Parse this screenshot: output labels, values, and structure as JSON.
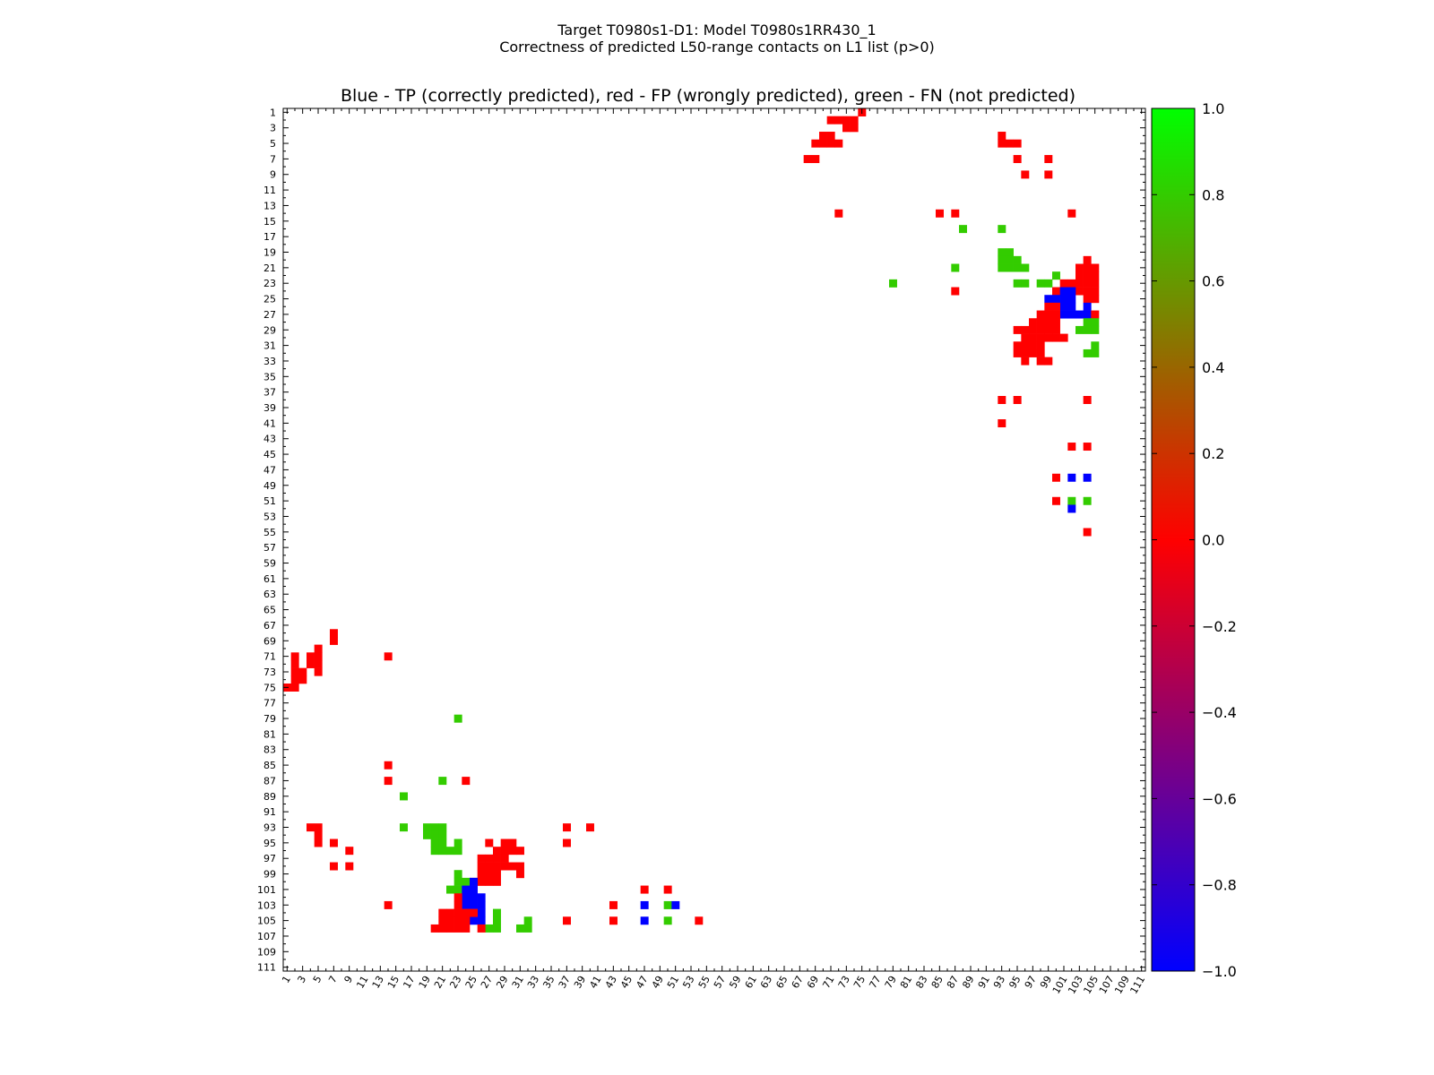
{
  "figure": {
    "title_line1": "Target T0980s1-D1: Model T0980s1RR430_1",
    "title_line2": "Correctness of predicted L50-range contacts on L1 list (p>0)"
  },
  "chart_data": {
    "type": "heatmap",
    "title": "Blue - TP (correctly predicted), red - FP (wrongly predicted), green - FN (not predicted)",
    "x_range": [
      1,
      111
    ],
    "y_range": [
      1,
      111
    ],
    "x_ticks": [
      1,
      3,
      5,
      7,
      9,
      11,
      13,
      15,
      17,
      19,
      21,
      23,
      25,
      27,
      29,
      31,
      33,
      35,
      37,
      39,
      41,
      43,
      45,
      47,
      49,
      51,
      53,
      55,
      57,
      59,
      61,
      63,
      65,
      67,
      69,
      71,
      73,
      75,
      77,
      79,
      81,
      83,
      85,
      87,
      89,
      91,
      93,
      95,
      97,
      99,
      101,
      103,
      105,
      107,
      109,
      111
    ],
    "y_ticks": [
      1,
      3,
      5,
      7,
      9,
      11,
      13,
      15,
      17,
      19,
      21,
      23,
      25,
      27,
      29,
      31,
      33,
      35,
      37,
      39,
      41,
      43,
      45,
      47,
      49,
      51,
      53,
      55,
      57,
      59,
      61,
      63,
      65,
      67,
      69,
      71,
      73,
      75,
      77,
      79,
      81,
      83,
      85,
      87,
      89,
      91,
      93,
      95,
      97,
      99,
      101,
      103,
      105,
      107,
      109,
      111
    ],
    "colorbar": {
      "min": -1.0,
      "max": 1.0,
      "ticks": [
        1.0,
        0.8,
        0.6,
        0.4,
        0.2,
        0.0,
        -0.2,
        -0.4,
        -0.6,
        -0.8,
        -1.0
      ],
      "tick_labels": [
        "1.0",
        "0.8",
        "0.6",
        "0.4",
        "0.2",
        "0.0",
        "−0.2",
        "−0.4",
        "−0.6",
        "−0.8",
        "−1.0"
      ],
      "colors": [
        "#0000ff",
        "#ff0000",
        "#00ff00"
      ]
    },
    "categories": [
      {
        "name": "TP",
        "value": -1,
        "color": "#0000ff"
      },
      {
        "name": "FP",
        "value": 0,
        "color": "#ff0000"
      },
      {
        "name": "FN",
        "value": 0.8,
        "color": "#33cc00"
      }
    ],
    "cells": [
      [
        71,
        2,
        0
      ],
      [
        72,
        2,
        0
      ],
      [
        73,
        2,
        0
      ],
      [
        74,
        2,
        0
      ],
      [
        75,
        1,
        0
      ],
      [
        74,
        3,
        0
      ],
      [
        73,
        3,
        0
      ],
      [
        70,
        4,
        0
      ],
      [
        71,
        4,
        0
      ],
      [
        70,
        5,
        0
      ],
      [
        71,
        5,
        0
      ],
      [
        72,
        5,
        0
      ],
      [
        69,
        5,
        0
      ],
      [
        68,
        7,
        0
      ],
      [
        69,
        7,
        0
      ],
      [
        93,
        4,
        0
      ],
      [
        93,
        5,
        0
      ],
      [
        94,
        5,
        0
      ],
      [
        95,
        5,
        0
      ],
      [
        95,
        7,
        0
      ],
      [
        99,
        7,
        0
      ],
      [
        96,
        9,
        0
      ],
      [
        99,
        9,
        0
      ],
      [
        72,
        14,
        0
      ],
      [
        85,
        14,
        0
      ],
      [
        87,
        14,
        0
      ],
      [
        102,
        14,
        0
      ],
      [
        88,
        16,
        0.8
      ],
      [
        93,
        16,
        0.8
      ],
      [
        93,
        19,
        0.8
      ],
      [
        94,
        19,
        0.8
      ],
      [
        93,
        20,
        0.8
      ],
      [
        94,
        20,
        0.8
      ],
      [
        95,
        20,
        0.8
      ],
      [
        93,
        21,
        0.8
      ],
      [
        94,
        21,
        0.8
      ],
      [
        95,
        21,
        0.8
      ],
      [
        96,
        21,
        0.8
      ],
      [
        87,
        21,
        0.8
      ],
      [
        79,
        23,
        0.8
      ],
      [
        95,
        23,
        0.8
      ],
      [
        96,
        23,
        0.8
      ],
      [
        98,
        23,
        0.8
      ],
      [
        99,
        23,
        0.8
      ],
      [
        100,
        22,
        0.8
      ],
      [
        104,
        20,
        0
      ],
      [
        103,
        21,
        0
      ],
      [
        104,
        21,
        0
      ],
      [
        105,
        21,
        0
      ],
      [
        103,
        22,
        0
      ],
      [
        104,
        22,
        0
      ],
      [
        105,
        22,
        0
      ],
      [
        101,
        23,
        0
      ],
      [
        102,
        23,
        0
      ],
      [
        103,
        23,
        0
      ],
      [
        104,
        23,
        0
      ],
      [
        105,
        23,
        0
      ],
      [
        100,
        24,
        0
      ],
      [
        103,
        24,
        0
      ],
      [
        104,
        24,
        0
      ],
      [
        105,
        24,
        0
      ],
      [
        104,
        25,
        0
      ],
      [
        105,
        25,
        0
      ],
      [
        87,
        24,
        0
      ],
      [
        101,
        24,
        -1
      ],
      [
        102,
        24,
        -1
      ],
      [
        99,
        25,
        -1
      ],
      [
        100,
        25,
        -1
      ],
      [
        101,
        25,
        -1
      ],
      [
        102,
        25,
        -1
      ],
      [
        101,
        26,
        -1
      ],
      [
        102,
        26,
        -1
      ],
      [
        104,
        26,
        -1
      ],
      [
        101,
        27,
        -1
      ],
      [
        102,
        27,
        -1
      ],
      [
        103,
        27,
        -1
      ],
      [
        104,
        27,
        -1
      ],
      [
        99,
        26,
        0
      ],
      [
        100,
        26,
        0
      ],
      [
        98,
        27,
        0
      ],
      [
        99,
        27,
        0
      ],
      [
        100,
        27,
        0
      ],
      [
        105,
        27,
        0
      ],
      [
        97,
        28,
        0
      ],
      [
        98,
        28,
        0
      ],
      [
        99,
        28,
        0
      ],
      [
        100,
        28,
        0
      ],
      [
        95,
        29,
        0
      ],
      [
        96,
        29,
        0
      ],
      [
        97,
        29,
        0
      ],
      [
        98,
        29,
        0
      ],
      [
        99,
        29,
        0
      ],
      [
        100,
        29,
        0
      ],
      [
        104,
        28,
        0.8
      ],
      [
        105,
        28,
        0.8
      ],
      [
        103,
        29,
        0.8
      ],
      [
        104,
        29,
        0.8
      ],
      [
        105,
        29,
        0.8
      ],
      [
        105,
        31,
        0.8
      ],
      [
        104,
        32,
        0.8
      ],
      [
        105,
        32,
        0.8
      ],
      [
        96,
        30,
        0
      ],
      [
        97,
        30,
        0
      ],
      [
        98,
        30,
        0
      ],
      [
        99,
        30,
        0
      ],
      [
        100,
        30,
        0
      ],
      [
        101,
        30,
        0
      ],
      [
        95,
        31,
        0
      ],
      [
        96,
        31,
        0
      ],
      [
        97,
        31,
        0
      ],
      [
        98,
        31,
        0
      ],
      [
        95,
        32,
        0
      ],
      [
        96,
        32,
        0
      ],
      [
        97,
        32,
        0
      ],
      [
        98,
        32,
        0
      ],
      [
        96,
        33,
        0
      ],
      [
        98,
        33,
        0
      ],
      [
        99,
        33,
        0
      ],
      [
        93,
        38,
        0
      ],
      [
        95,
        38,
        0
      ],
      [
        104,
        38,
        0
      ],
      [
        93,
        41,
        0
      ],
      [
        102,
        44,
        0
      ],
      [
        104,
        44,
        0
      ],
      [
        100,
        48,
        0
      ],
      [
        102,
        48,
        -1
      ],
      [
        104,
        48,
        -1
      ],
      [
        100,
        51,
        0
      ],
      [
        102,
        51,
        0.8
      ],
      [
        104,
        51,
        0.8
      ],
      [
        102,
        52,
        -1
      ],
      [
        104,
        55,
        0
      ],
      [
        7,
        68,
        0
      ],
      [
        7,
        69,
        0
      ],
      [
        5,
        70,
        0
      ],
      [
        2,
        71,
        0
      ],
      [
        4,
        71,
        0
      ],
      [
        5,
        71,
        0
      ],
      [
        14,
        71,
        0
      ],
      [
        2,
        72,
        0
      ],
      [
        4,
        72,
        0
      ],
      [
        5,
        72,
        0
      ],
      [
        2,
        73,
        0
      ],
      [
        3,
        73,
        0
      ],
      [
        5,
        73,
        0
      ],
      [
        2,
        74,
        0
      ],
      [
        3,
        74,
        0
      ],
      [
        1,
        75,
        0
      ],
      [
        2,
        75,
        0
      ],
      [
        23,
        79,
        0.8
      ],
      [
        14,
        85,
        0
      ],
      [
        14,
        87,
        0
      ],
      [
        21,
        87,
        0.8
      ],
      [
        24,
        87,
        0
      ],
      [
        16,
        89,
        0.8
      ],
      [
        4,
        93,
        0
      ],
      [
        5,
        93,
        0
      ],
      [
        5,
        94,
        0
      ],
      [
        16,
        93,
        0.8
      ],
      [
        37,
        93,
        0
      ],
      [
        40,
        93,
        0
      ],
      [
        19,
        93,
        0.8
      ],
      [
        20,
        93,
        0.8
      ],
      [
        21,
        93,
        0.8
      ],
      [
        19,
        94,
        0.8
      ],
      [
        20,
        94,
        0.8
      ],
      [
        21,
        94,
        0.8
      ],
      [
        20,
        95,
        0.8
      ],
      [
        21,
        95,
        0.8
      ],
      [
        20,
        96,
        0.8
      ],
      [
        21,
        96,
        0.8
      ],
      [
        22,
        96,
        0.8
      ],
      [
        23,
        96,
        0.8
      ],
      [
        23,
        95,
        0.8
      ],
      [
        5,
        95,
        0
      ],
      [
        7,
        95,
        0
      ],
      [
        9,
        96,
        0
      ],
      [
        37,
        95,
        0
      ],
      [
        7,
        98,
        0
      ],
      [
        9,
        98,
        0
      ],
      [
        27,
        95,
        0
      ],
      [
        29,
        95,
        0
      ],
      [
        30,
        95,
        0
      ],
      [
        28,
        96,
        0
      ],
      [
        29,
        96,
        0
      ],
      [
        30,
        96,
        0
      ],
      [
        31,
        96,
        0
      ],
      [
        26,
        97,
        0
      ],
      [
        27,
        97,
        0
      ],
      [
        28,
        97,
        0
      ],
      [
        29,
        97,
        0
      ],
      [
        26,
        98,
        0
      ],
      [
        27,
        98,
        0
      ],
      [
        28,
        98,
        0
      ],
      [
        29,
        98,
        0
      ],
      [
        30,
        98,
        0
      ],
      [
        31,
        98,
        0
      ],
      [
        26,
        99,
        0
      ],
      [
        27,
        99,
        0
      ],
      [
        28,
        99,
        0
      ],
      [
        31,
        99,
        0
      ],
      [
        25,
        100,
        0
      ],
      [
        26,
        100,
        0
      ],
      [
        27,
        100,
        0
      ],
      [
        28,
        100,
        0
      ],
      [
        23,
        99,
        0.8
      ],
      [
        23,
        100,
        0.8
      ],
      [
        24,
        100,
        0.8
      ],
      [
        22,
        101,
        0.8
      ],
      [
        23,
        101,
        0.8
      ],
      [
        28,
        104,
        0.8
      ],
      [
        28,
        105,
        0.8
      ],
      [
        27,
        106,
        0.8
      ],
      [
        28,
        106,
        0.8
      ],
      [
        31,
        106,
        0.8
      ],
      [
        32,
        105,
        0.8
      ],
      [
        32,
        106,
        0.8
      ],
      [
        25,
        100,
        -1
      ],
      [
        24,
        101,
        -1
      ],
      [
        25,
        101,
        -1
      ],
      [
        24,
        102,
        -1
      ],
      [
        25,
        102,
        -1
      ],
      [
        26,
        102,
        -1
      ],
      [
        24,
        103,
        -1
      ],
      [
        25,
        103,
        -1
      ],
      [
        26,
        103,
        -1
      ],
      [
        26,
        104,
        -1
      ],
      [
        26,
        105,
        -1
      ],
      [
        25,
        105,
        -1
      ],
      [
        23,
        102,
        0
      ],
      [
        23,
        103,
        0
      ],
      [
        21,
        104,
        0
      ],
      [
        22,
        104,
        0
      ],
      [
        23,
        104,
        0
      ],
      [
        24,
        104,
        0
      ],
      [
        25,
        104,
        0
      ],
      [
        21,
        105,
        0
      ],
      [
        22,
        105,
        0
      ],
      [
        23,
        105,
        0
      ],
      [
        24,
        105,
        0
      ],
      [
        20,
        106,
        0
      ],
      [
        21,
        106,
        0
      ],
      [
        22,
        106,
        0
      ],
      [
        23,
        106,
        0
      ],
      [
        24,
        106,
        0
      ],
      [
        26,
        106,
        0
      ],
      [
        14,
        103,
        0
      ],
      [
        43,
        103,
        0
      ],
      [
        47,
        101,
        0
      ],
      [
        50,
        101,
        0
      ],
      [
        47,
        103,
        -1
      ],
      [
        50,
        103,
        0.8
      ],
      [
        51,
        103,
        -1
      ],
      [
        37,
        105,
        0
      ],
      [
        43,
        105,
        0
      ],
      [
        47,
        105,
        -1
      ],
      [
        50,
        105,
        0.8
      ],
      [
        54,
        105,
        0
      ]
    ]
  }
}
